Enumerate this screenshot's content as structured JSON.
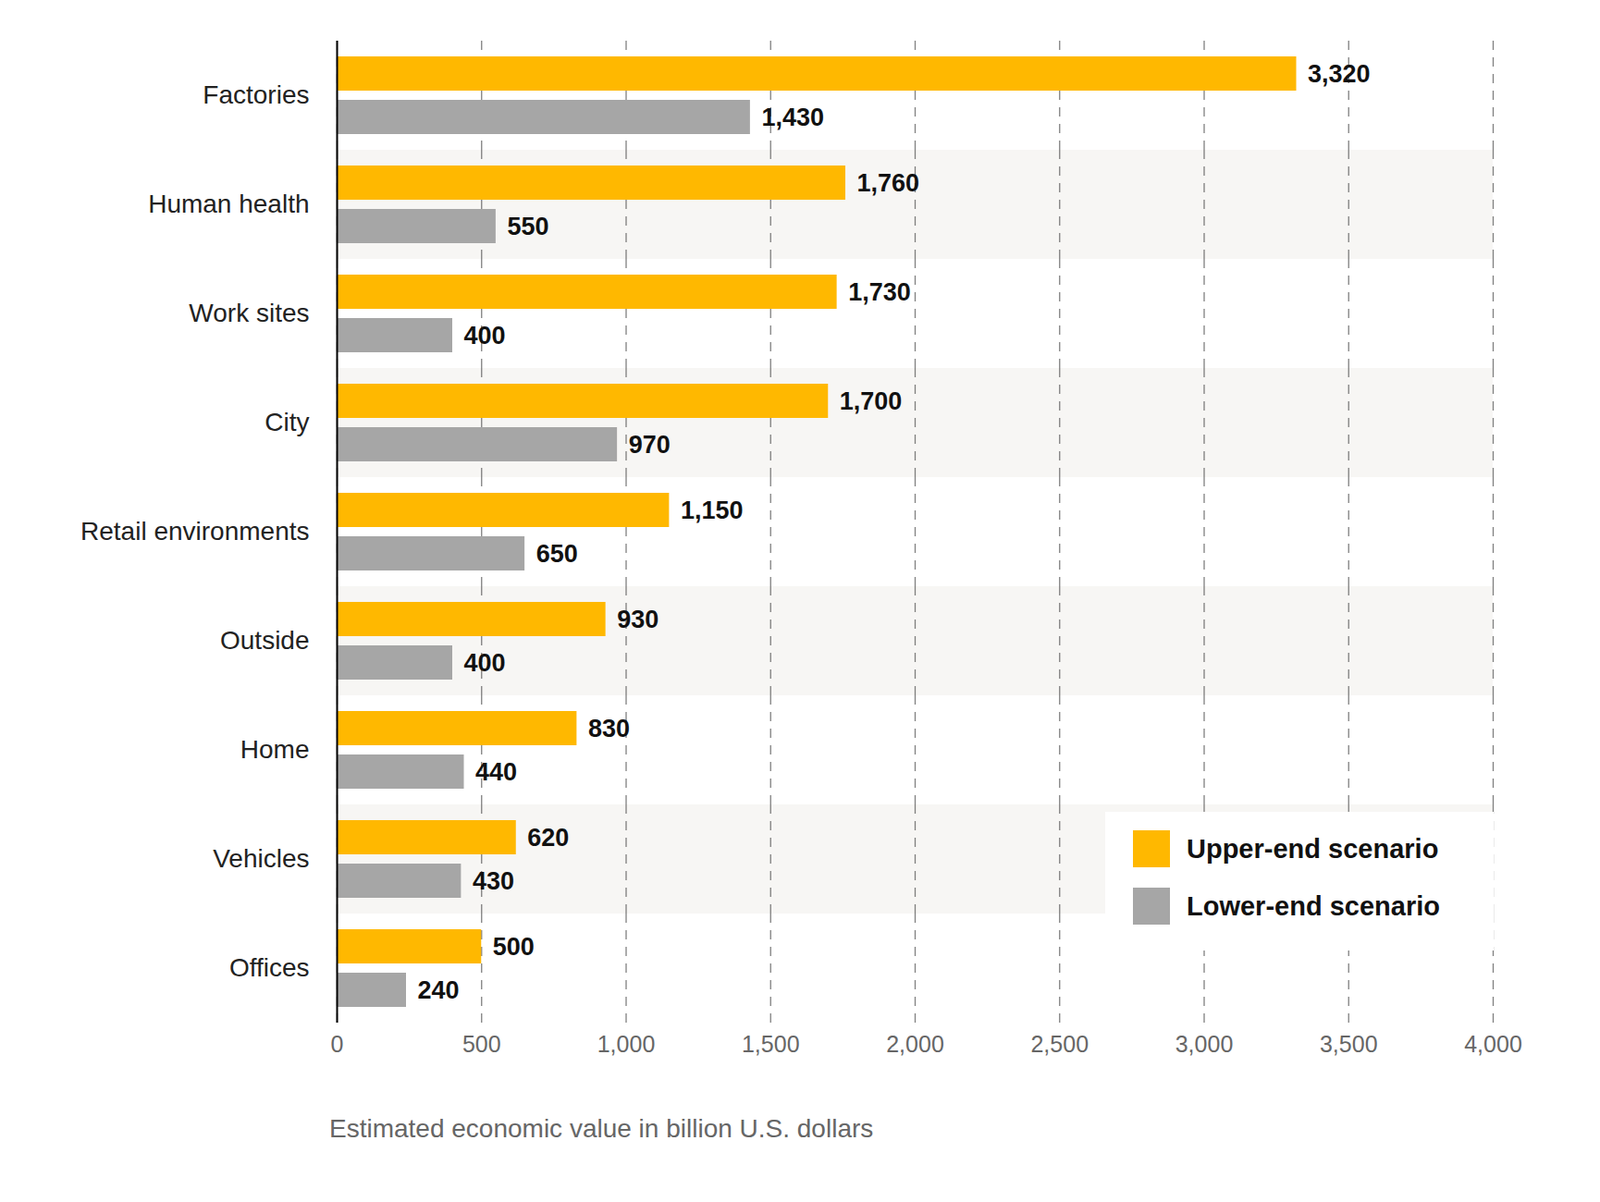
{
  "chart_data": {
    "type": "bar",
    "orientation": "horizontal",
    "categories": [
      "Factories",
      "Human health",
      "Work sites",
      "City",
      "Retail environments",
      "Outside",
      "Home",
      "Vehicles",
      "Offices"
    ],
    "series": [
      {
        "name": "Upper-end scenario",
        "color": "#FFB800",
        "values": [
          3320,
          1760,
          1730,
          1700,
          1150,
          930,
          830,
          620,
          500
        ],
        "value_labels": [
          "3,320",
          "1,760",
          "1,730",
          "1,700",
          "1,150",
          "930",
          "830",
          "620",
          "500"
        ]
      },
      {
        "name": "Lower-end scenario",
        "color": "#A6A6A6",
        "values": [
          1430,
          550,
          400,
          970,
          650,
          400,
          440,
          430,
          240
        ],
        "value_labels": [
          "1,430",
          "550",
          "400",
          "970",
          "650",
          "400",
          "440",
          "430",
          "240"
        ]
      }
    ],
    "x_label": "Estimated economic value in billion U.S. dollars",
    "xlim": [
      0,
      4000
    ],
    "xticks": [
      0,
      500,
      {
        "value": 1000,
        "label": "1,000"
      },
      {
        "value": 1500,
        "label": "1,500"
      },
      {
        "value": 2000,
        "label": "2,000"
      },
      {
        "value": 2500,
        "label": "2,500"
      },
      {
        "value": 3000,
        "label": "3,000"
      },
      {
        "value": 3500,
        "label": "3,500"
      },
      {
        "value": 4000,
        "label": "4,000"
      }
    ],
    "grid": true,
    "data_labels": true,
    "legend": "bottom-right"
  }
}
